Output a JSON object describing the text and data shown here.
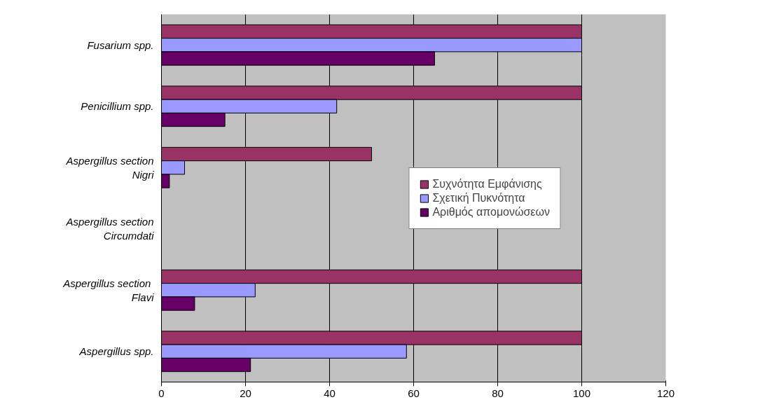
{
  "chart_data": {
    "type": "bar",
    "orientation": "horizontal",
    "categories": [
      "Fusarium spp.",
      "Penicillium spp.",
      "Aspergillus section Nigri",
      "Aspergillus section Circumdati",
      "Aspergillus  section Flavi",
      "Aspergillus spp."
    ],
    "series": [
      {
        "name": "Συχνότητα Εμφάνισης",
        "color": "#993366",
        "values": [
          100,
          100,
          50,
          null,
          100,
          100
        ]
      },
      {
        "name": "Σχετική Πυκνότητα",
        "color": "#9999ff",
        "values": [
          100,
          41.7,
          5.5,
          null,
          22.3,
          58.3
        ]
      },
      {
        "name": "Αριθμός απομονώσεων",
        "color": "#660066",
        "values": [
          65,
          15.1,
          1.9,
          null,
          7.9,
          21.2
        ]
      }
    ],
    "xlim": [
      0,
      120
    ],
    "xticks": [
      0,
      20,
      40,
      60,
      80,
      100,
      120
    ],
    "grid": "x",
    "legend": "right"
  }
}
